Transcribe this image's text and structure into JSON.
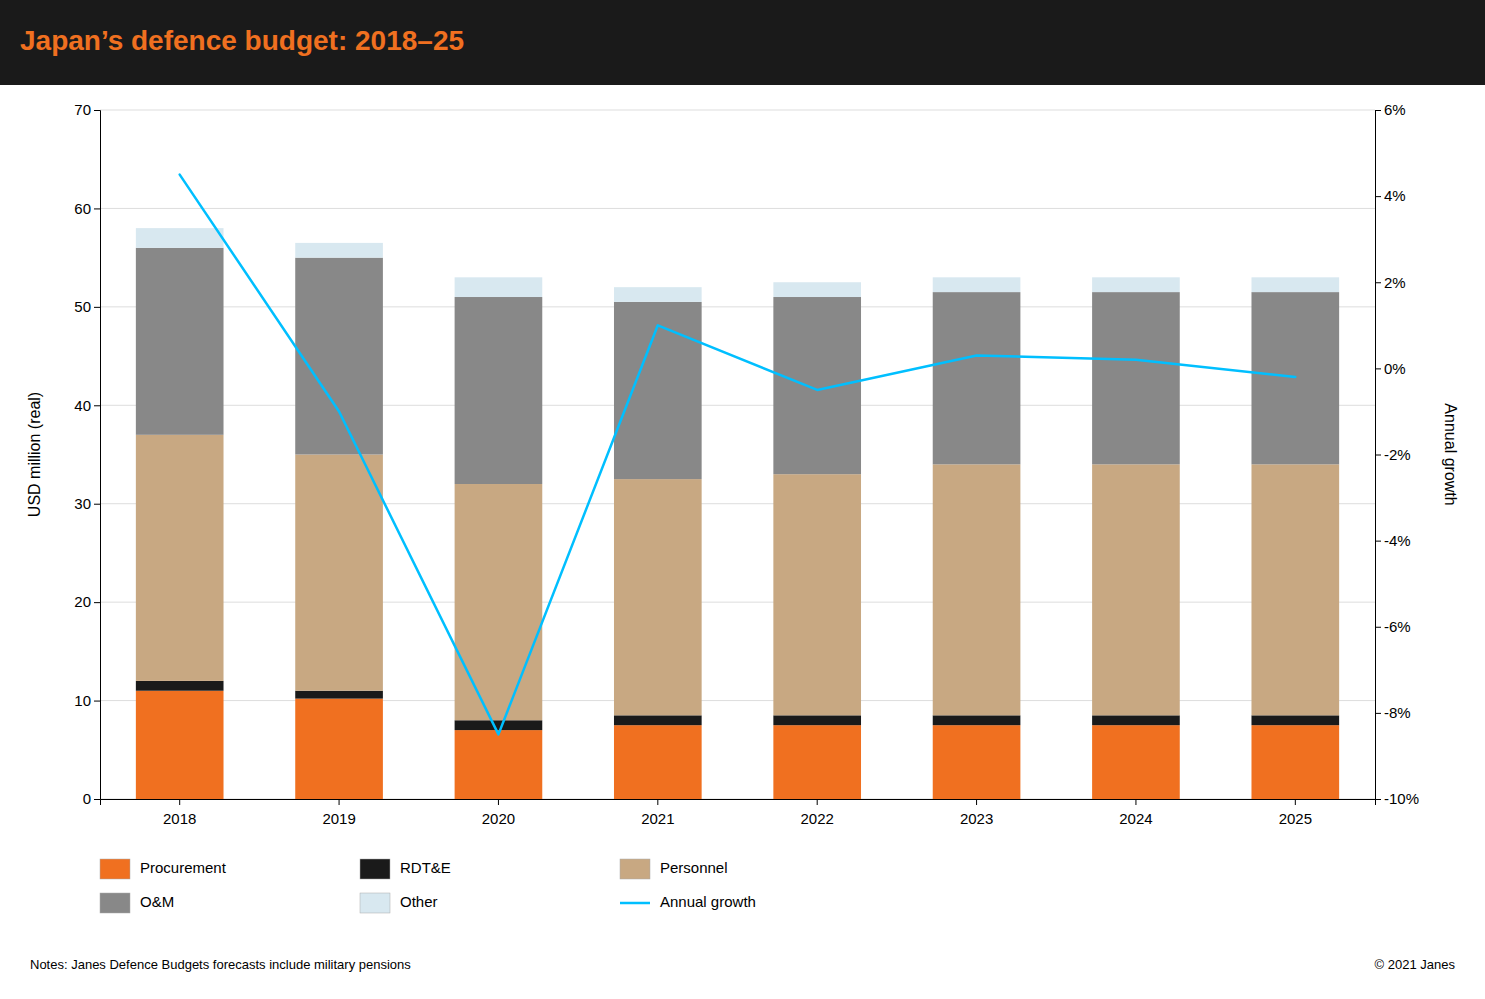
{
  "chart_data": {
    "type": "bar",
    "title": "Japan’s defence budget: 2018–25",
    "categories": [
      "2018",
      "2019",
      "2020",
      "2021",
      "2022",
      "2023",
      "2024",
      "2025"
    ],
    "stacked": true,
    "series": [
      {
        "name": "Procurement",
        "color": "#F07020",
        "values": [
          11.0,
          10.2,
          7.0,
          7.5,
          7.5,
          7.5,
          7.5,
          7.5
        ]
      },
      {
        "name": "RDT&E",
        "color": "#1A1A1A",
        "values": [
          1.0,
          0.8,
          1.0,
          1.0,
          1.0,
          1.0,
          1.0,
          1.0
        ]
      },
      {
        "name": "Personnel",
        "color": "#C8A882",
        "values": [
          25.0,
          24.0,
          24.0,
          24.0,
          24.5,
          25.5,
          25.5,
          25.5
        ]
      },
      {
        "name": "O&M",
        "color": "#888888",
        "values": [
          19.0,
          20.0,
          19.0,
          18.0,
          18.0,
          17.5,
          17.5,
          17.5
        ]
      },
      {
        "name": "Other",
        "color": "#D8E8F0",
        "values": [
          2.0,
          1.5,
          2.0,
          1.5,
          1.5,
          1.5,
          1.5,
          1.5
        ]
      },
      {
        "name": "Annual growth",
        "type": "line",
        "axis": "y2",
        "color": "#00BFFF",
        "values": [
          4.5,
          -1.0,
          -8.5,
          1.0,
          -0.5,
          0.3,
          0.2,
          -0.2
        ]
      }
    ],
    "ylabel": "USD million (real)",
    "y2label": "Annual growth",
    "ylim": [
      0,
      70
    ],
    "yticks": [
      0,
      10,
      20,
      30,
      40,
      50,
      60,
      70
    ],
    "y2lim": [
      -10,
      6
    ],
    "y2ticks": [
      {
        "value": -10,
        "label": "-10%"
      },
      {
        "value": -8,
        "label": "-8%"
      },
      {
        "value": -6,
        "label": "-6%"
      },
      {
        "value": -4,
        "label": "-4%"
      },
      {
        "value": -2,
        "label": "-2%"
      },
      {
        "value": 0,
        "label": "0%"
      },
      {
        "value": 2,
        "label": "2%"
      },
      {
        "value": 4,
        "label": "4%"
      },
      {
        "value": 6,
        "label": "6%"
      }
    ],
    "grid": true,
    "legend": "bottom",
    "annotations": [
      "Notes: Janes Defence Budgets forecasts include military pensions",
      "© 2021 Janes"
    ]
  }
}
